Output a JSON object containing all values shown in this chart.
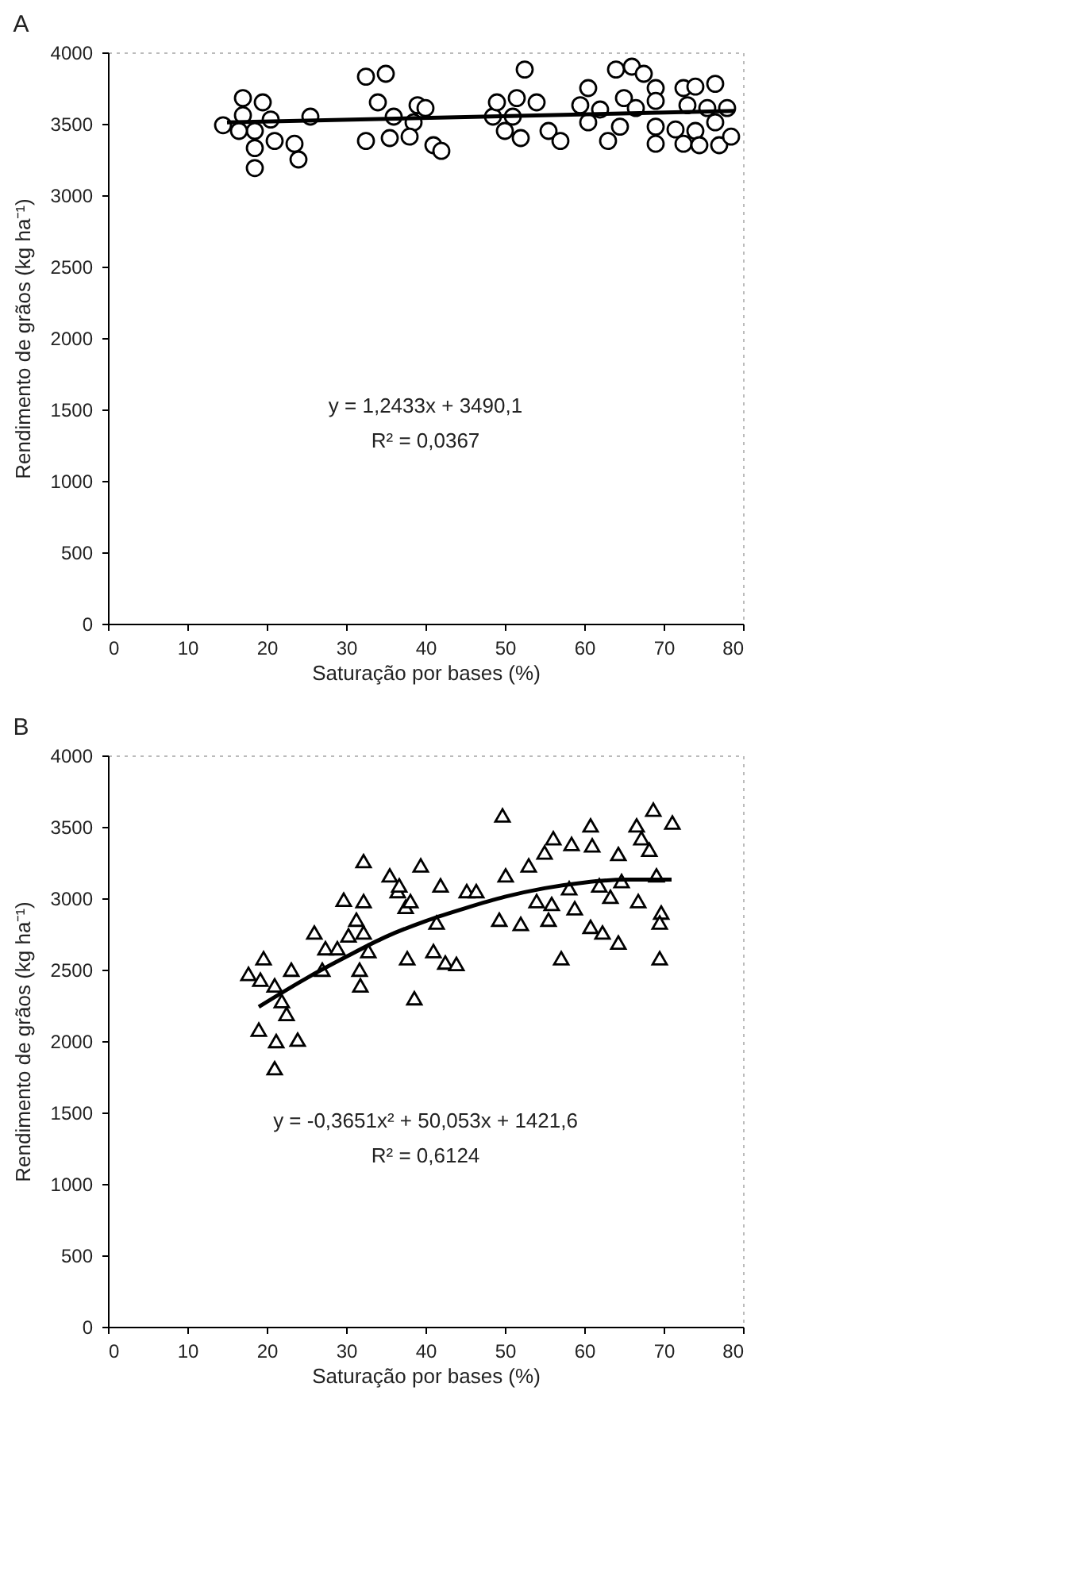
{
  "chart_data": [
    {
      "type": "scatter",
      "title": "A",
      "xlabel": "Saturação por bases (%)",
      "ylabel": "Rendimento de grãos (kg ha⁻¹)",
      "xlim": [
        0,
        80
      ],
      "ylim": [
        0,
        4000
      ],
      "xticks": [
        0,
        10,
        20,
        30,
        40,
        50,
        60,
        70,
        80
      ],
      "yticks": [
        0,
        500,
        1000,
        1500,
        2000,
        2500,
        3000,
        3500,
        4000
      ],
      "annotations": [
        "y = 1,2433x + 3490,1",
        "R² = 0,0367"
      ],
      "series": [
        {
          "type": "scatter",
          "marker": "circle",
          "color": "#000000",
          "x": [
            14.5,
            17,
            19.5,
            17,
            20.5,
            18.5,
            21,
            23.5,
            24,
            18.5,
            18.5,
            16.5,
            25.5,
            32.5,
            35,
            34,
            36,
            32.5,
            35.5,
            39,
            38.5,
            38,
            41,
            40,
            42,
            48.5,
            52.5,
            49,
            51.5,
            54,
            51,
            50,
            52,
            55.5,
            57,
            60.5,
            59.5,
            60.5,
            63,
            64,
            66,
            65,
            67.5,
            69,
            69,
            64.5,
            69,
            69,
            72.5,
            74,
            76.5,
            73,
            75.5,
            78,
            71.5,
            74,
            76.5,
            72.5,
            74.5,
            77,
            78.5,
            66.5,
            62
          ],
          "values": [
            3490,
            3680,
            3650,
            3560,
            3530,
            3450,
            3380,
            3360,
            3250,
            3330,
            3190,
            3450,
            3550,
            3830,
            3850,
            3650,
            3550,
            3380,
            3400,
            3630,
            3510,
            3410,
            3350,
            3610,
            3310,
            3550,
            3880,
            3650,
            3680,
            3650,
            3550,
            3450,
            3400,
            3450,
            3380,
            3750,
            3630,
            3510,
            3380,
            3880,
            3900,
            3680,
            3850,
            3750,
            3660,
            3480,
            3480,
            3360,
            3750,
            3760,
            3780,
            3630,
            3610,
            3610,
            3460,
            3450,
            3510,
            3360,
            3350,
            3350,
            3410,
            3610,
            3600
          ]
        },
        {
          "type": "line",
          "marker": "none",
          "color": "#000000",
          "x": [
            15,
            79
          ],
          "values": [
            3510,
            3590
          ]
        }
      ]
    },
    {
      "type": "scatter",
      "title": "B",
      "xlabel": "Saturação por bases (%)",
      "ylabel": "Rendimento de grãos (kg ha⁻¹)",
      "xlim": [
        0,
        80
      ],
      "ylim": [
        0,
        4000
      ],
      "xticks": [
        0,
        10,
        20,
        30,
        40,
        50,
        60,
        70,
        80
      ],
      "yticks": [
        0,
        500,
        1000,
        1500,
        2000,
        2500,
        3000,
        3500,
        4000
      ],
      "annotations": [
        "y = -0,3651x² + 50,053x + 1421,6",
        "R² = 0,6124"
      ],
      "series": [
        {
          "type": "scatter",
          "marker": "triangle",
          "color": "#000000",
          "x": [
            17.7,
            19.6,
            19.2,
            21,
            23.1,
            21.9,
            22.5,
            19,
            21.2,
            23.9,
            21,
            26,
            27.4,
            29.7,
            32.2,
            32.2,
            30.3,
            31.3,
            28.9,
            32.2,
            32.8,
            27,
            31.7,
            31.8,
            35.5,
            36.5,
            37.5,
            37.7,
            38.6,
            39.4,
            49.7,
            36.7,
            41.9,
            38.1,
            41.4,
            41,
            42.5,
            43.9,
            45.2,
            46.4,
            50.1,
            49.3,
            52,
            53,
            55,
            56.1,
            55.5,
            54,
            58.4,
            60.8,
            61,
            57.1,
            58.8,
            60.8,
            62.3,
            64.3,
            64.3,
            66.6,
            67.2,
            68.2,
            68.7,
            71.1,
            69.1,
            69.7,
            69.5,
            69.5,
            66.8,
            64.7,
            61.9,
            58.1,
            55.9,
            63.3
          ],
          "values": [
            2470,
            2580,
            2430,
            2390,
            2500,
            2280,
            2190,
            2080,
            2000,
            2010,
            1810,
            2760,
            2650,
            2990,
            2980,
            3260,
            2740,
            2850,
            2650,
            2760,
            2630,
            2500,
            2500,
            2390,
            3160,
            3050,
            2940,
            2580,
            2300,
            3230,
            3580,
            3090,
            3090,
            2980,
            2830,
            2630,
            2550,
            2540,
            3050,
            3050,
            3160,
            2850,
            2820,
            3230,
            3320,
            3420,
            2850,
            2980,
            3380,
            3510,
            3370,
            2580,
            2930,
            2800,
            2760,
            2690,
            3310,
            3510,
            3420,
            3340,
            3620,
            3530,
            3160,
            2900,
            2830,
            2580,
            2980,
            3120,
            3090,
            3070,
            2960,
            3010
          ]
        },
        {
          "type": "line",
          "marker": "none",
          "color": "#000000",
          "x": [
            19,
            25,
            30,
            35,
            40,
            45,
            50,
            55,
            60,
            65,
            71
          ],
          "values": [
            2240,
            2440,
            2590,
            2730,
            2840,
            2930,
            3010,
            3070,
            3110,
            3130,
            3130
          ]
        }
      ]
    }
  ]
}
